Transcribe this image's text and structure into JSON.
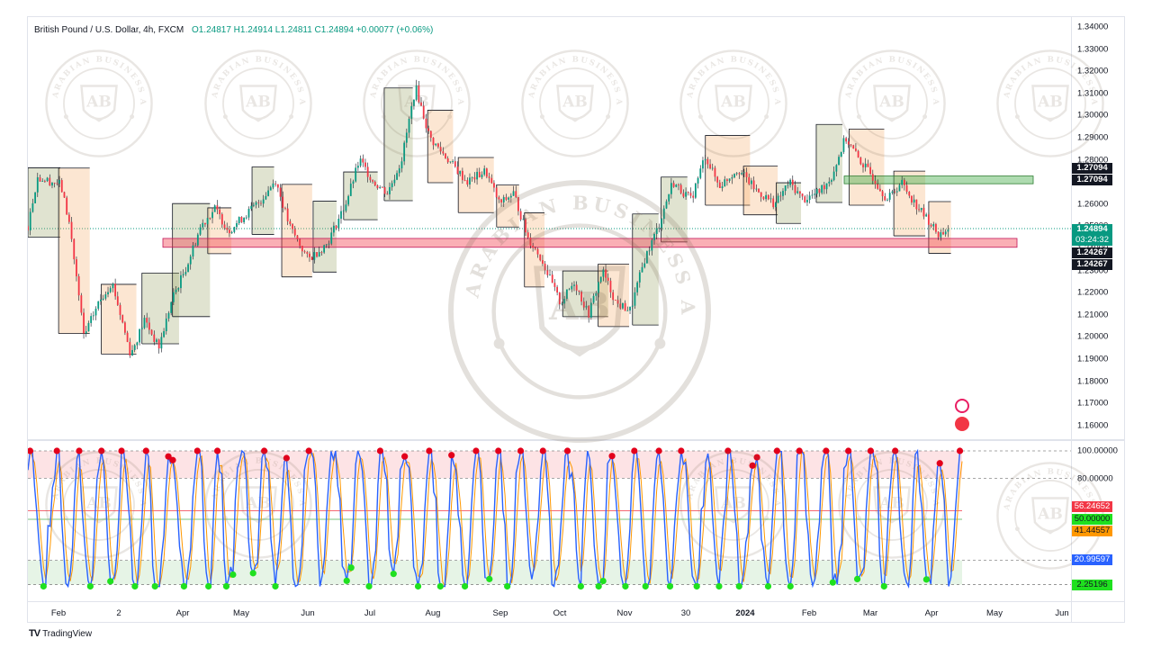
{
  "legend": {
    "symbol": "British Pound / U.S. Dollar, 4h, FXCM",
    "ohlc": "O1.24817  H1.24914  L1.24811  C1.24894  +0.00077 (+0.06%)"
  },
  "price_axis": [
    "1.34000",
    "1.33000",
    "1.32000",
    "1.31000",
    "1.30000",
    "1.29000",
    "1.28000",
    "1.27000",
    "1.26000",
    "1.25000",
    "1.24000",
    "1.23000",
    "1.22000",
    "1.21000",
    "1.20000",
    "1.19000",
    "1.18000",
    "1.17000",
    "1.16000"
  ],
  "price_tags": {
    "resistance_a": "1.27094",
    "resistance_b": "1.27094",
    "last_price": "1.24894",
    "countdown": "03:24:32",
    "support_a": "1.24267",
    "support_b": "1.24267"
  },
  "osc_axis": [
    "100.00000",
    "80.00000",
    "20.00000"
  ],
  "osc_tags": {
    "v1": "56.24652",
    "v2": "50.00000",
    "v3": "41.44557",
    "v4": "20.99597",
    "v5": "2.25196"
  },
  "time_axis": [
    "Feb",
    "2",
    "Apr",
    "May",
    "Jun",
    "Jul",
    "Aug",
    "Sep",
    "Oct",
    "Nov",
    "30",
    "2024",
    "Feb",
    "Mar",
    "Apr",
    "May",
    "Jun"
  ],
  "watermark": {
    "monogram": "AB",
    "ring_text": "ARABIAN BUSINESS ACADEMY"
  },
  "footer": {
    "brand": "TradingView"
  },
  "colors": {
    "up": "#089981",
    "down": "#f23645",
    "resistance_zone": "#4caf50",
    "support_zone": "#f23645",
    "osc_line": "#2962ff",
    "osc_signal": "#ff9800",
    "overbought_dot": "#e3001b",
    "oversold_dot": "#1fe01f"
  },
  "chart_data": {
    "type": "candlestick",
    "symbol": "GBPUSD",
    "timeframe": "4h",
    "ylim": [
      1.155,
      1.345
    ],
    "last_close": 1.24894,
    "zones": [
      {
        "kind": "resistance",
        "from": 1.2692,
        "to": 1.2727
      },
      {
        "kind": "support",
        "from": 1.2405,
        "to": 1.2445
      }
    ],
    "path_points": [
      {
        "t": 0.0,
        "p": 1.25
      },
      {
        "t": 0.01,
        "p": 1.272
      },
      {
        "t": 0.035,
        "p": 1.269
      },
      {
        "t": 0.045,
        "p": 1.25
      },
      {
        "t": 0.06,
        "p": 1.2
      },
      {
        "t": 0.075,
        "p": 1.215
      },
      {
        "t": 0.09,
        "p": 1.225
      },
      {
        "t": 0.11,
        "p": 1.192
      },
      {
        "t": 0.125,
        "p": 1.208
      },
      {
        "t": 0.14,
        "p": 1.195
      },
      {
        "t": 0.155,
        "p": 1.218
      },
      {
        "t": 0.17,
        "p": 1.232
      },
      {
        "t": 0.185,
        "p": 1.25
      },
      {
        "t": 0.2,
        "p": 1.258
      },
      {
        "t": 0.215,
        "p": 1.248
      },
      {
        "t": 0.23,
        "p": 1.254
      },
      {
        "t": 0.25,
        "p": 1.262
      },
      {
        "t": 0.265,
        "p": 1.271
      },
      {
        "t": 0.28,
        "p": 1.25
      },
      {
        "t": 0.3,
        "p": 1.235
      },
      {
        "t": 0.32,
        "p": 1.242
      },
      {
        "t": 0.34,
        "p": 1.26
      },
      {
        "t": 0.355,
        "p": 1.28
      },
      {
        "t": 0.37,
        "p": 1.27
      },
      {
        "t": 0.385,
        "p": 1.265
      },
      {
        "t": 0.4,
        "p": 1.28
      },
      {
        "t": 0.415,
        "p": 1.313
      },
      {
        "t": 0.43,
        "p": 1.29
      },
      {
        "t": 0.45,
        "p": 1.28
      },
      {
        "t": 0.47,
        "p": 1.27
      },
      {
        "t": 0.49,
        "p": 1.275
      },
      {
        "t": 0.505,
        "p": 1.26
      },
      {
        "t": 0.52,
        "p": 1.265
      },
      {
        "t": 0.535,
        "p": 1.245
      },
      {
        "t": 0.55,
        "p": 1.235
      },
      {
        "t": 0.57,
        "p": 1.215
      },
      {
        "t": 0.585,
        "p": 1.225
      },
      {
        "t": 0.6,
        "p": 1.21
      },
      {
        "t": 0.615,
        "p": 1.23
      },
      {
        "t": 0.63,
        "p": 1.215
      },
      {
        "t": 0.645,
        "p": 1.212
      },
      {
        "t": 0.66,
        "p": 1.235
      },
      {
        "t": 0.675,
        "p": 1.25
      },
      {
        "t": 0.69,
        "p": 1.27
      },
      {
        "t": 0.71,
        "p": 1.262
      },
      {
        "t": 0.725,
        "p": 1.282
      },
      {
        "t": 0.74,
        "p": 1.268
      },
      {
        "t": 0.76,
        "p": 1.276
      },
      {
        "t": 0.78,
        "p": 1.266
      },
      {
        "t": 0.8,
        "p": 1.26
      },
      {
        "t": 0.815,
        "p": 1.27
      },
      {
        "t": 0.83,
        "p": 1.262
      },
      {
        "t": 0.845,
        "p": 1.265
      },
      {
        "t": 0.86,
        "p": 1.272
      },
      {
        "t": 0.875,
        "p": 1.29
      },
      {
        "t": 0.89,
        "p": 1.28
      },
      {
        "t": 0.905,
        "p": 1.272
      },
      {
        "t": 0.92,
        "p": 1.262
      },
      {
        "t": 0.935,
        "p": 1.27
      },
      {
        "t": 0.95,
        "p": 1.26
      },
      {
        "t": 0.965,
        "p": 1.252
      },
      {
        "t": 0.975,
        "p": 1.246
      },
      {
        "t": 0.985,
        "p": 1.2489
      }
    ],
    "oscillator": {
      "ylim": [
        0,
        100
      ],
      "levels": [
        100,
        80,
        50,
        20,
        2.25
      ],
      "last": [
        56.24652,
        41.44557
      ]
    }
  }
}
